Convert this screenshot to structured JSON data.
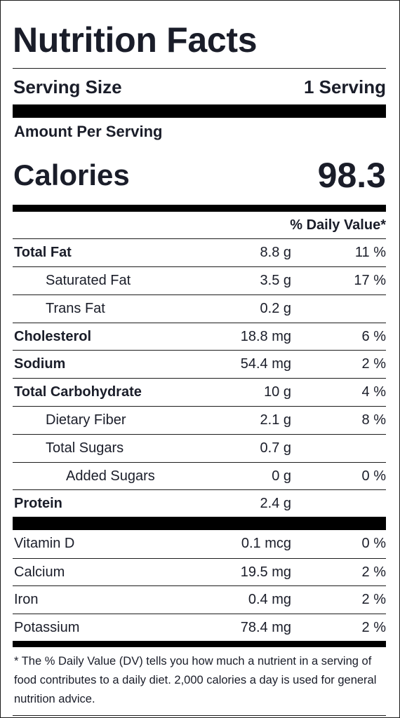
{
  "title": "Nutrition Facts",
  "serving": {
    "label": "Serving Size",
    "value": "1 Serving"
  },
  "amount_per_serving": "Amount Per Serving",
  "calories": {
    "label": "Calories",
    "value": "98.3"
  },
  "daily_value_header": "% Daily Value*",
  "nutrients": [
    {
      "name": "Total Fat",
      "amount": "8.8 g",
      "dv": "11 %"
    },
    {
      "name": "Saturated Fat",
      "amount": "3.5 g",
      "dv": "17 %"
    },
    {
      "name": "Trans Fat",
      "amount": "0.2 g",
      "dv": ""
    },
    {
      "name": "Cholesterol",
      "amount": "18.8 mg",
      "dv": "6 %"
    },
    {
      "name": "Sodium",
      "amount": "54.4 mg",
      "dv": "2 %"
    },
    {
      "name": "Total Carbohydrate",
      "amount": "10 g",
      "dv": "4 %"
    },
    {
      "name": "Dietary Fiber",
      "amount": "2.1 g",
      "dv": "8 %"
    },
    {
      "name": "Total Sugars",
      "amount": "0.7 g",
      "dv": ""
    },
    {
      "name": "Added Sugars",
      "amount": "0 g",
      "dv": "0 %"
    },
    {
      "name": "Protein",
      "amount": "2.4 g",
      "dv": ""
    }
  ],
  "vitamins": [
    {
      "name": "Vitamin D",
      "amount": "0.1 mcg",
      "dv": "0 %"
    },
    {
      "name": "Calcium",
      "amount": "19.5 mg",
      "dv": "2 %"
    },
    {
      "name": "Iron",
      "amount": "0.4 mg",
      "dv": "2 %"
    },
    {
      "name": "Potassium",
      "amount": "78.4 mg",
      "dv": "2 %"
    }
  ],
  "footnote": "* The % Daily Value (DV) tells you how much a nutrient in a serving of food contributes to a daily diet. 2,000 calories a day is used for general nutrition advice."
}
